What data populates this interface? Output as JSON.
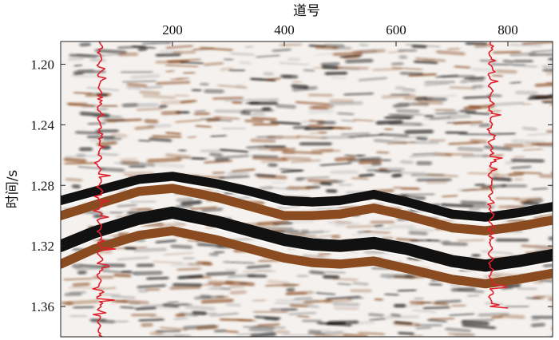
{
  "chart_data": {
    "type": "heatmap",
    "title": "",
    "xlabel": "道号",
    "ylabel": "时间/s",
    "xlim": [
      0,
      880
    ],
    "ylim": [
      1.38,
      1.185
    ],
    "x_ticks": [
      {
        "value": 200,
        "label": "200"
      },
      {
        "value": 400,
        "label": "400"
      },
      {
        "value": 600,
        "label": "600"
      },
      {
        "value": 800,
        "label": "800"
      }
    ],
    "y_ticks": [
      {
        "value": 1.2,
        "label": "1.20"
      },
      {
        "value": 1.24,
        "label": "1.24"
      },
      {
        "value": 1.28,
        "label": "1.28"
      },
      {
        "value": 1.32,
        "label": "1.32"
      },
      {
        "value": 1.36,
        "label": "1.36"
      }
    ],
    "x_axis_position": "top",
    "colormap": {
      "negative": "#111111",
      "zero": "#ffffff",
      "positive": "#8a4b20"
    },
    "horizons": [
      {
        "polarity": "negative",
        "thickness_s": 0.006,
        "time_at_trace": [
          [
            0,
            1.29
          ],
          [
            60,
            1.284
          ],
          [
            140,
            1.276
          ],
          [
            200,
            1.274
          ],
          [
            280,
            1.279
          ],
          [
            340,
            1.284
          ],
          [
            400,
            1.29
          ],
          [
            450,
            1.291
          ],
          [
            500,
            1.29
          ],
          [
            560,
            1.286
          ],
          [
            620,
            1.291
          ],
          [
            700,
            1.299
          ],
          [
            760,
            1.301
          ],
          [
            820,
            1.298
          ],
          [
            880,
            1.294
          ]
        ]
      },
      {
        "polarity": "positive",
        "thickness_s": 0.006,
        "time_at_trace": [
          [
            0,
            1.3
          ],
          [
            60,
            1.293
          ],
          [
            140,
            1.284
          ],
          [
            200,
            1.282
          ],
          [
            280,
            1.288
          ],
          [
            340,
            1.294
          ],
          [
            400,
            1.3
          ],
          [
            450,
            1.3
          ],
          [
            500,
            1.299
          ],
          [
            560,
            1.295
          ],
          [
            620,
            1.3
          ],
          [
            700,
            1.308
          ],
          [
            760,
            1.31
          ],
          [
            820,
            1.307
          ],
          [
            880,
            1.303
          ]
        ]
      },
      {
        "polarity": "negative",
        "thickness_s": 0.008,
        "time_at_trace": [
          [
            0,
            1.32
          ],
          [
            60,
            1.311
          ],
          [
            140,
            1.302
          ],
          [
            200,
            1.298
          ],
          [
            280,
            1.304
          ],
          [
            340,
            1.31
          ],
          [
            400,
            1.316
          ],
          [
            450,
            1.319
          ],
          [
            500,
            1.32
          ],
          [
            560,
            1.318
          ],
          [
            620,
            1.322
          ],
          [
            700,
            1.33
          ],
          [
            760,
            1.333
          ],
          [
            820,
            1.33
          ],
          [
            880,
            1.326
          ]
        ]
      },
      {
        "polarity": "positive",
        "thickness_s": 0.006,
        "time_at_trace": [
          [
            0,
            1.332
          ],
          [
            60,
            1.322
          ],
          [
            140,
            1.313
          ],
          [
            200,
            1.31
          ],
          [
            280,
            1.316
          ],
          [
            340,
            1.322
          ],
          [
            400,
            1.328
          ],
          [
            450,
            1.331
          ],
          [
            500,
            1.332
          ],
          [
            560,
            1.33
          ],
          [
            620,
            1.335
          ],
          [
            700,
            1.342
          ],
          [
            760,
            1.345
          ],
          [
            820,
            1.342
          ],
          [
            880,
            1.338
          ]
        ]
      }
    ],
    "well_logs": [
      {
        "color": "#e0202a",
        "trace_position": 70,
        "time_range": [
          1.185,
          1.38
        ]
      },
      {
        "color": "#e0202a",
        "trace_position": 770,
        "time_range": [
          1.185,
          1.362
        ]
      }
    ]
  }
}
